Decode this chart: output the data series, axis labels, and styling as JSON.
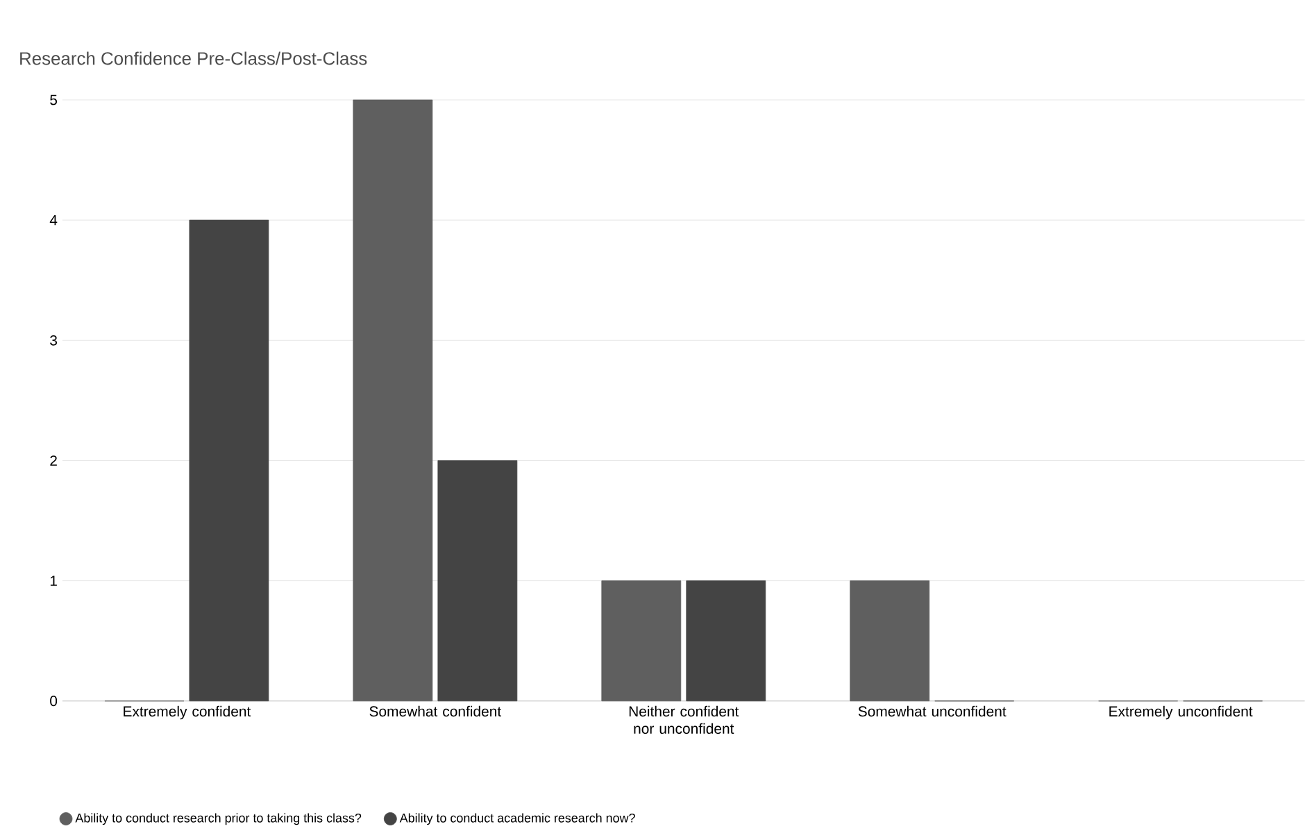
{
  "chart_data": {
    "type": "bar",
    "title": "Research Confidence Pre-Class/Post-Class",
    "categories": [
      "Extremely confident",
      "Somewhat confident",
      "Neither confident nor unconfident",
      "Somewhat unconfident",
      "Extremely unconfident"
    ],
    "series": [
      {
        "name": "Ability to conduct research prior to taking this class?",
        "color": "#5f5f5f",
        "values": [
          0,
          5,
          1,
          1,
          0
        ]
      },
      {
        "name": "Ability to conduct academic research now?",
        "color": "#444444",
        "values": [
          4,
          2,
          1,
          0,
          0
        ]
      }
    ],
    "ylim": [
      0,
      5
    ],
    "yticks": [
      0,
      1,
      2,
      3,
      4,
      5
    ],
    "grid": "y",
    "legend": "bottom left"
  }
}
